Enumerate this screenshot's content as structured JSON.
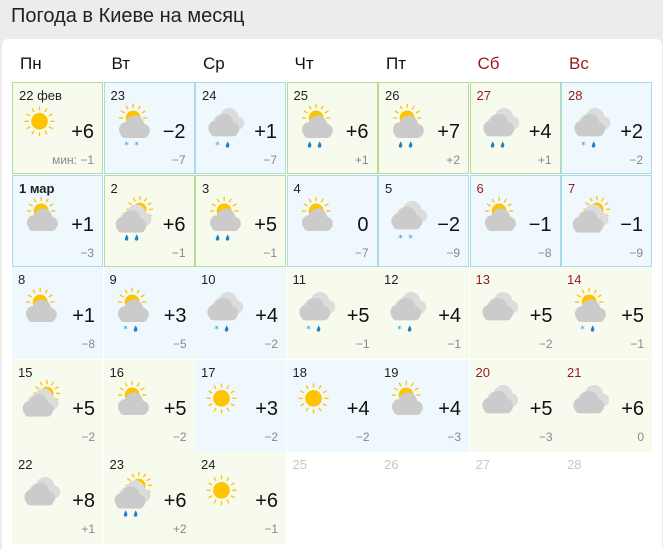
{
  "title": "Погода в Киеве на месяц",
  "colors": {
    "warm": "#f6fbee",
    "cold": "#eff9fd",
    "weekend": "#9a1a1a",
    "sun": "#ffc400",
    "cloud": "#cfcfcf",
    "precip": "#2a9be0"
  },
  "weekdays": [
    {
      "label": "Пн",
      "weekend": false
    },
    {
      "label": "Вт",
      "weekend": false
    },
    {
      "label": "Ср",
      "weekend": false
    },
    {
      "label": "Чт",
      "weekend": false
    },
    {
      "label": "Пт",
      "weekend": false
    },
    {
      "label": "Сб",
      "weekend": true
    },
    {
      "label": "Вс",
      "weekend": true
    }
  ],
  "min_prefix": "мин: ",
  "days": [
    {
      "date": "22 фев",
      "hi": "+6",
      "lo": "−1",
      "icon": "sun",
      "precip": [],
      "tone": "warm"
    },
    {
      "date": "23",
      "hi": "−2",
      "lo": "−7",
      "icon": "sun-cloud",
      "precip": [
        "snow",
        "snow"
      ],
      "tone": "cold"
    },
    {
      "date": "24",
      "hi": "+1",
      "lo": "−7",
      "icon": "cloud",
      "precip": [
        "snow",
        "rain"
      ],
      "tone": "cold"
    },
    {
      "date": "25",
      "hi": "+6",
      "lo": "+1",
      "icon": "sun-cloud",
      "precip": [
        "rain",
        "rain"
      ],
      "tone": "warm"
    },
    {
      "date": "26",
      "hi": "+7",
      "lo": "+2",
      "icon": "sun-cloud",
      "precip": [
        "rain",
        "rain"
      ],
      "tone": "warm"
    },
    {
      "date": "27",
      "hi": "+4",
      "lo": "+1",
      "icon": "cloud",
      "precip": [
        "rain",
        "rain"
      ],
      "tone": "warm"
    },
    {
      "date": "28",
      "hi": "+2",
      "lo": "−2",
      "icon": "cloud",
      "precip": [
        "snow",
        "rain"
      ],
      "tone": "cold"
    },
    {
      "date": "1 мар",
      "hi": "+1",
      "lo": "−3",
      "icon": "sun-cloud",
      "precip": [],
      "tone": "cold",
      "bold": true
    },
    {
      "date": "2",
      "hi": "+6",
      "lo": "−1",
      "icon": "cloud-sun",
      "precip": [
        "rain",
        "rain"
      ],
      "tone": "warm"
    },
    {
      "date": "3",
      "hi": "+5",
      "lo": "−1",
      "icon": "sun-cloud",
      "precip": [
        "rain",
        "rain"
      ],
      "tone": "warm"
    },
    {
      "date": "4",
      "hi": "0",
      "lo": "−7",
      "icon": "sun-cloud",
      "precip": [],
      "tone": "cold"
    },
    {
      "date": "5",
      "hi": "−2",
      "lo": "−9",
      "icon": "cloud",
      "precip": [
        "snow",
        "snow"
      ],
      "tone": "cold"
    },
    {
      "date": "6",
      "hi": "−1",
      "lo": "−8",
      "icon": "sun-cloud",
      "precip": [],
      "tone": "cold"
    },
    {
      "date": "7",
      "hi": "−1",
      "lo": "−9",
      "icon": "cloud-sun",
      "precip": [],
      "tone": "cold"
    },
    {
      "date": "8",
      "hi": "+1",
      "lo": "−8",
      "icon": "sun-cloud",
      "precip": [],
      "tone": "cold"
    },
    {
      "date": "9",
      "hi": "+3",
      "lo": "−5",
      "icon": "sun-cloud",
      "precip": [
        "snow",
        "rain"
      ],
      "tone": "cold"
    },
    {
      "date": "10",
      "hi": "+4",
      "lo": "−2",
      "icon": "cloud",
      "precip": [
        "snow",
        "rain"
      ],
      "tone": "cold"
    },
    {
      "date": "11",
      "hi": "+5",
      "lo": "−1",
      "icon": "cloud",
      "precip": [
        "snow",
        "rain"
      ],
      "tone": "warm"
    },
    {
      "date": "12",
      "hi": "+4",
      "lo": "−1",
      "icon": "cloud",
      "precip": [
        "snow",
        "rain"
      ],
      "tone": "warm"
    },
    {
      "date": "13",
      "hi": "+5",
      "lo": "−2",
      "icon": "cloud",
      "precip": [],
      "tone": "warm"
    },
    {
      "date": "14",
      "hi": "+5",
      "lo": "−1",
      "icon": "sun-cloud",
      "precip": [
        "snow",
        "rain"
      ],
      "tone": "warm"
    },
    {
      "date": "15",
      "hi": "+5",
      "lo": "−2",
      "icon": "cloud-sun",
      "precip": [],
      "tone": "warm"
    },
    {
      "date": "16",
      "hi": "+5",
      "lo": "−2",
      "icon": "sun-cloud",
      "precip": [],
      "tone": "warm"
    },
    {
      "date": "17",
      "hi": "+3",
      "lo": "−2",
      "icon": "sun",
      "precip": [],
      "tone": "cold"
    },
    {
      "date": "18",
      "hi": "+4",
      "lo": "−2",
      "icon": "sun",
      "precip": [],
      "tone": "cold"
    },
    {
      "date": "19",
      "hi": "+4",
      "lo": "−3",
      "icon": "sun-cloud",
      "precip": [],
      "tone": "cold"
    },
    {
      "date": "20",
      "hi": "+5",
      "lo": "−3",
      "icon": "cloud",
      "precip": [],
      "tone": "warm"
    },
    {
      "date": "21",
      "hi": "+6",
      "lo": "0",
      "icon": "cloud",
      "precip": [],
      "tone": "warm"
    },
    {
      "date": "22",
      "hi": "+8",
      "lo": "+1",
      "icon": "cloud",
      "precip": [],
      "tone": "warm"
    },
    {
      "date": "23",
      "hi": "+6",
      "lo": "+2",
      "icon": "cloud-sun",
      "precip": [
        "rain",
        "rain"
      ],
      "tone": "warm"
    },
    {
      "date": "24",
      "hi": "+6",
      "lo": "−1",
      "icon": "sun",
      "precip": [],
      "tone": "warm"
    },
    {
      "date": "25",
      "empty": true
    },
    {
      "date": "26",
      "empty": true
    },
    {
      "date": "27",
      "empty": true
    },
    {
      "date": "28",
      "empty": true
    }
  ]
}
